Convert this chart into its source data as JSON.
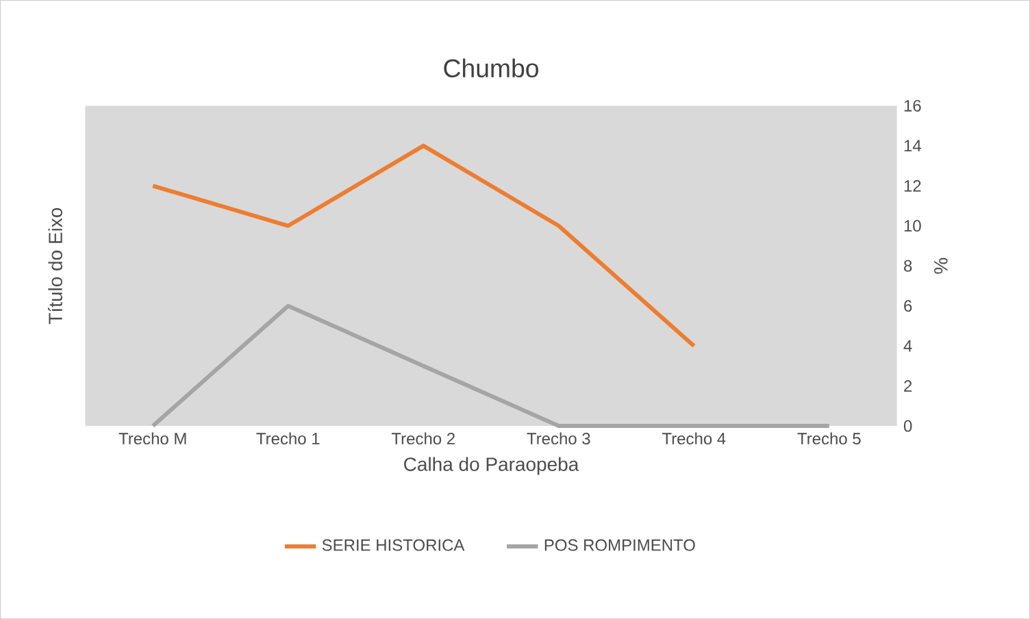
{
  "chart_data": {
    "type": "line",
    "title": "Chumbo",
    "xlabel": "Calha do Paraopeba",
    "ylabel": "Título do Eixo",
    "y2label": "%",
    "categories": [
      "Trecho M",
      "Trecho 1",
      "Trecho 2",
      "Trecho 3",
      "Trecho 4",
      "Trecho 5"
    ],
    "series": [
      {
        "name": "SERIE HISTORICA",
        "color": "#ed7d31",
        "axis": "y2",
        "values": [
          12,
          10,
          14,
          10,
          4,
          null
        ]
      },
      {
        "name": "POS ROMPIMENTO",
        "color": "#a5a5a5",
        "axis": "y2",
        "values": [
          0,
          6,
          3,
          0,
          0,
          0
        ]
      }
    ],
    "y2lim": [
      0,
      16
    ],
    "y2ticks": [
      0,
      2,
      4,
      6,
      8,
      10,
      12,
      14,
      16
    ],
    "legend": "bottom"
  }
}
